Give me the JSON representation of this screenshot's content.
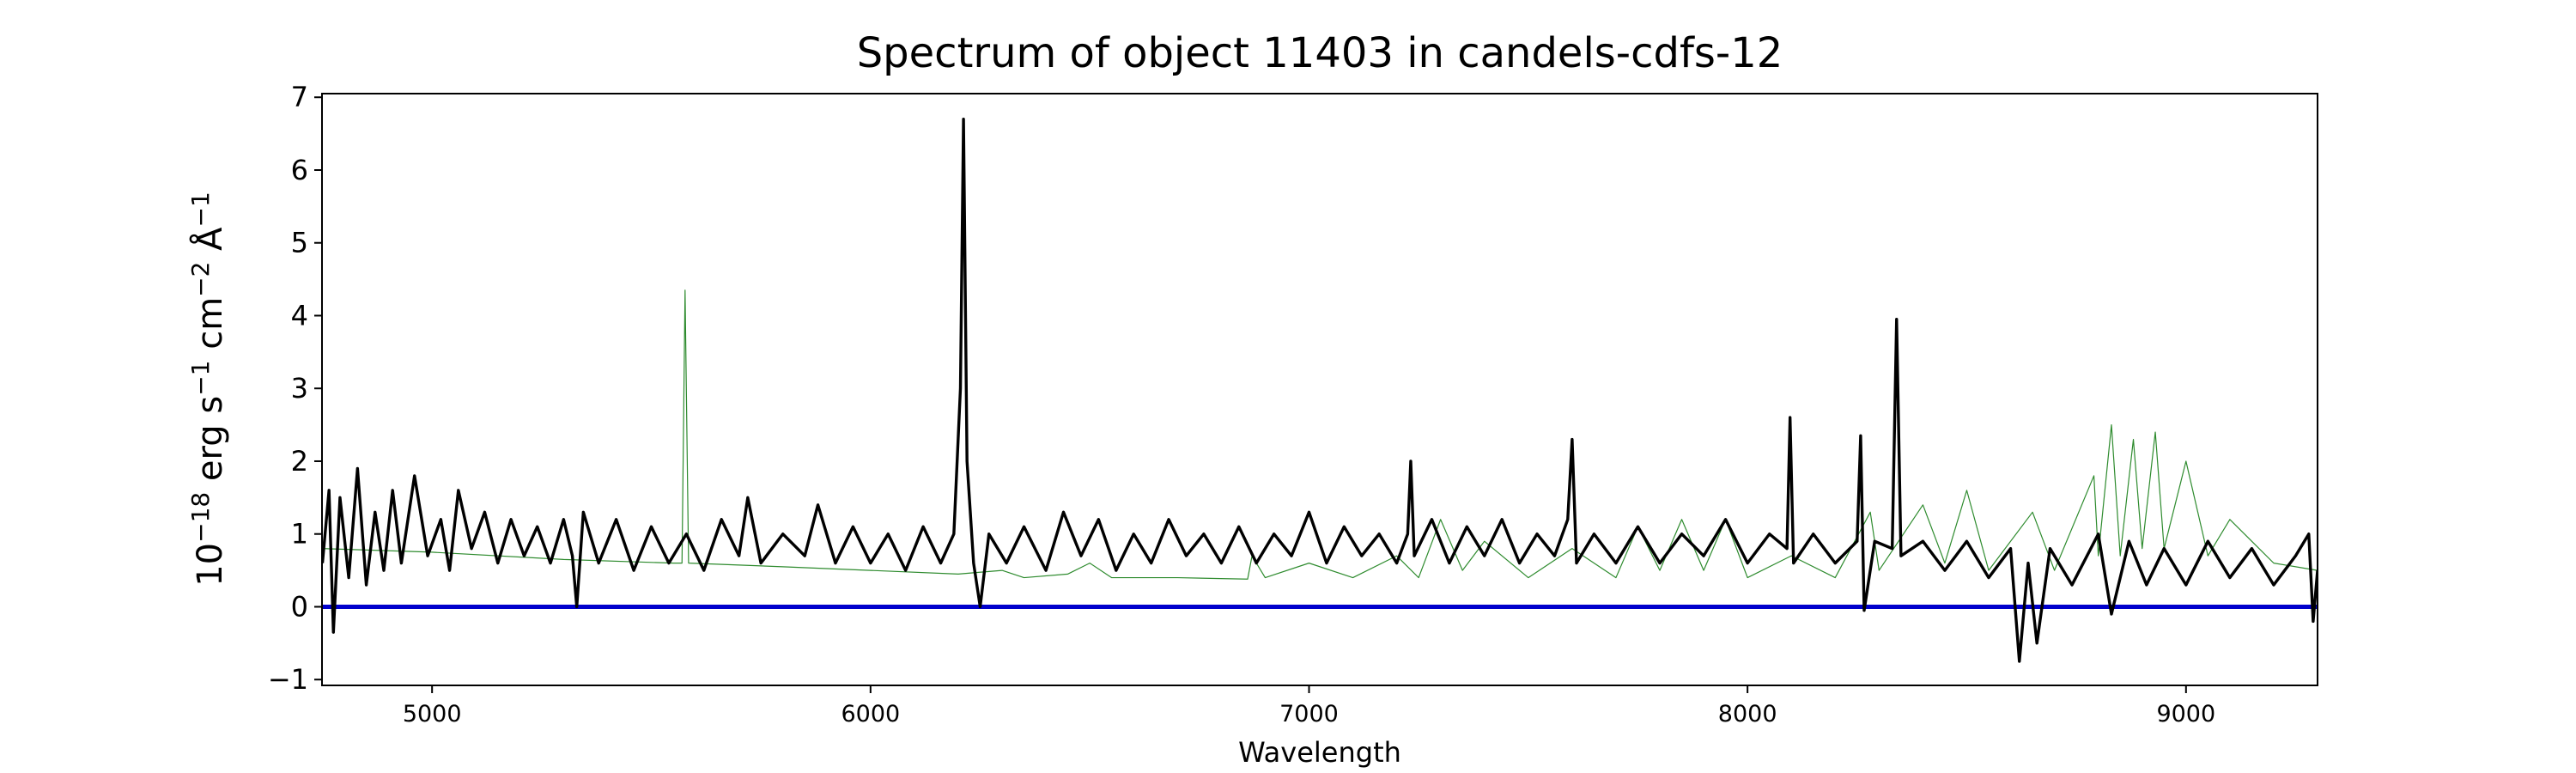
{
  "chart_data": {
    "type": "line",
    "title": "Spectrum of object 11403 in candels-cdfs-12",
    "xlabel": "Wavelength",
    "ylabel": [
      "10",
      "−18",
      " erg s",
      "−1",
      " cm",
      "−2",
      " Å",
      "−1"
    ],
    "xlim": [
      4749,
      9300
    ],
    "ylim": [
      -1.08,
      7.05
    ],
    "xticks": [
      5000,
      6000,
      7000,
      8000,
      9000
    ],
    "yticks": [
      {
        "value": -1,
        "label": "−1"
      },
      0,
      1,
      2,
      3,
      4,
      5,
      6,
      7
    ],
    "grid": false,
    "series": [
      {
        "color": "#2e8b2e",
        "linewidth": 1.2,
        "x": [
          4750,
          5000,
          5300,
          5550,
          5570,
          5577,
          5585,
          5800,
          6000,
          6200,
          6300,
          6350,
          6450,
          6500,
          6550,
          6700,
          6860,
          6870,
          6900,
          7000,
          7100,
          7200,
          7250,
          7300,
          7350,
          7400,
          7500,
          7600,
          7700,
          7750,
          7800,
          7850,
          7900,
          7950,
          8000,
          8100,
          8200,
          8280,
          8300,
          8400,
          8450,
          8500,
          8550,
          8650,
          8700,
          8790,
          8800,
          8830,
          8850,
          8880,
          8900,
          8930,
          8950,
          9000,
          9050,
          9100,
          9200,
          9300
        ],
        "values": [
          0.8,
          0.75,
          0.65,
          0.6,
          0.6,
          4.35,
          0.6,
          0.55,
          0.5,
          0.45,
          0.5,
          0.4,
          0.45,
          0.6,
          0.4,
          0.4,
          0.38,
          0.7,
          0.4,
          0.6,
          0.4,
          0.7,
          0.4,
          1.2,
          0.5,
          0.9,
          0.4,
          0.8,
          0.4,
          1.1,
          0.5,
          1.2,
          0.5,
          1.2,
          0.4,
          0.7,
          0.4,
          1.3,
          0.5,
          1.4,
          0.6,
          1.6,
          0.5,
          1.3,
          0.5,
          1.8,
          0.7,
          2.5,
          0.7,
          2.3,
          0.8,
          2.4,
          0.8,
          2.0,
          0.7,
          1.2,
          0.6,
          0.5
        ]
      },
      {
        "color": "#0000cc",
        "linewidth": 5,
        "x": [
          4749,
          9300
        ],
        "values": [
          0,
          0
        ]
      },
      {
        "color": "#000000",
        "linewidth": 3.4,
        "x": [
          4750,
          4765,
          4775,
          4790,
          4810,
          4830,
          4850,
          4870,
          4890,
          4910,
          4930,
          4960,
          4990,
          5020,
          5040,
          5060,
          5090,
          5120,
          5150,
          5180,
          5210,
          5240,
          5270,
          5300,
          5320,
          5330,
          5345,
          5380,
          5420,
          5460,
          5500,
          5540,
          5580,
          5620,
          5660,
          5700,
          5720,
          5750,
          5800,
          5850,
          5880,
          5920,
          5960,
          6000,
          6040,
          6080,
          6120,
          6160,
          6190,
          6205,
          6212,
          6220,
          6235,
          6250,
          6270,
          6310,
          6350,
          6400,
          6440,
          6480,
          6520,
          6560,
          6600,
          6640,
          6680,
          6720,
          6760,
          6800,
          6840,
          6880,
          6920,
          6960,
          7000,
          7040,
          7080,
          7120,
          7160,
          7200,
          7225,
          7232,
          7240,
          7280,
          7320,
          7360,
          7400,
          7440,
          7480,
          7520,
          7560,
          7590,
          7600,
          7610,
          7650,
          7700,
          7750,
          7800,
          7850,
          7900,
          7950,
          8000,
          8050,
          8090,
          8097,
          8105,
          8150,
          8200,
          8250,
          8258,
          8266,
          8290,
          8330,
          8340,
          8350,
          8400,
          8450,
          8500,
          8550,
          8600,
          8620,
          8640,
          8660,
          8690,
          8740,
          8800,
          8830,
          8870,
          8910,
          8950,
          9000,
          9050,
          9100,
          9150,
          9200,
          9250,
          9280,
          9290,
          9300
        ],
        "values": [
          0.6,
          1.6,
          -0.35,
          1.5,
          0.4,
          1.9,
          0.3,
          1.3,
          0.5,
          1.6,
          0.6,
          1.8,
          0.7,
          1.2,
          0.5,
          1.6,
          0.8,
          1.3,
          0.6,
          1.2,
          0.7,
          1.1,
          0.6,
          1.2,
          0.7,
          0,
          1.3,
          0.6,
          1.2,
          0.5,
          1.1,
          0.6,
          1.0,
          0.5,
          1.2,
          0.7,
          1.5,
          0.6,
          1.0,
          0.7,
          1.4,
          0.6,
          1.1,
          0.6,
          1.0,
          0.5,
          1.1,
          0.6,
          1.0,
          3.0,
          6.7,
          2.0,
          0.6,
          0,
          1.0,
          0.6,
          1.1,
          0.5,
          1.3,
          0.7,
          1.2,
          0.5,
          1.0,
          0.6,
          1.2,
          0.7,
          1.0,
          0.6,
          1.1,
          0.6,
          1.0,
          0.7,
          1.3,
          0.6,
          1.1,
          0.7,
          1.0,
          0.6,
          1.0,
          2.0,
          0.7,
          1.2,
          0.6,
          1.1,
          0.7,
          1.2,
          0.6,
          1.0,
          0.7,
          1.2,
          2.3,
          0.6,
          1.0,
          0.6,
          1.1,
          0.6,
          1.0,
          0.7,
          1.2,
          0.6,
          1.0,
          0.8,
          2.6,
          0.6,
          1.0,
          0.6,
          0.9,
          2.35,
          -0.05,
          0.9,
          0.8,
          3.95,
          0.7,
          0.9,
          0.5,
          0.9,
          0.4,
          0.8,
          -0.75,
          0.6,
          -0.5,
          0.8,
          0.3,
          1.0,
          -0.1,
          0.9,
          0.3,
          0.8,
          0.3,
          0.9,
          0.4,
          0.8,
          0.3,
          0.7,
          1.0,
          -0.2,
          0.5
        ]
      }
    ]
  }
}
